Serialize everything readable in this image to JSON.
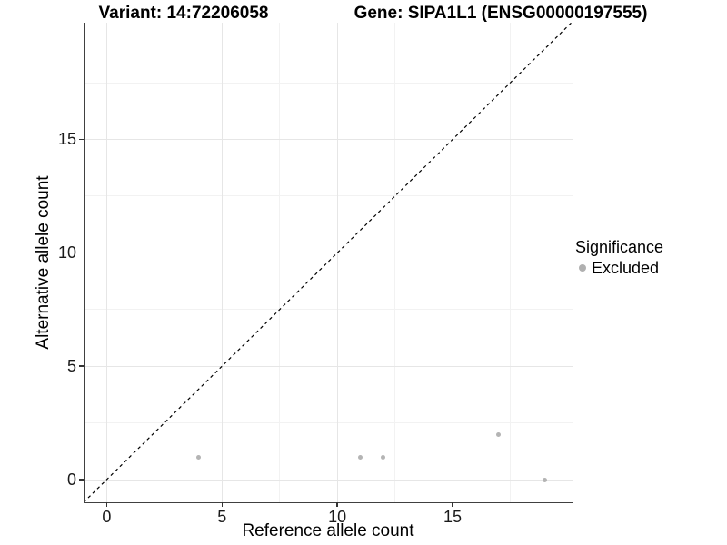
{
  "titles": {
    "variant": "Variant: 14:72206058",
    "gene": "Gene: SIPA1L1 (ENSG00000197555)"
  },
  "chart_data": {
    "type": "scatter",
    "title": "Variant: 14:72206058 | Gene: SIPA1L1 (ENSG00000197555)",
    "xlabel": "Reference allele count",
    "ylabel": "Alternative allele count",
    "xlim": [
      -1,
      20.2
    ],
    "ylim": [
      -1,
      20.15
    ],
    "x_ticks": [
      0,
      5,
      10,
      15
    ],
    "y_ticks": [
      0,
      5,
      10,
      15
    ],
    "x_minor_ticks": [
      2.5,
      7.5,
      12.5,
      17.5
    ],
    "y_minor_ticks": [
      2.5,
      7.5,
      12.5,
      17.5
    ],
    "grid": true,
    "series": [
      {
        "name": "Excluded",
        "color": "#b4b4b4",
        "points": [
          [
            4,
            1
          ],
          [
            11,
            1
          ],
          [
            12,
            1
          ],
          [
            17,
            2
          ],
          [
            19,
            0
          ]
        ]
      }
    ],
    "reference_line": {
      "type": "identity",
      "style": "dashed",
      "color": "#000000"
    },
    "legend": {
      "position": "right",
      "title": "Significance",
      "entries": [
        {
          "label": "Excluded",
          "color": "#b0b0b0"
        }
      ]
    }
  },
  "colors": {
    "point": "#b4b4b4",
    "grid_major": "#e6e6e6",
    "grid_minor": "#f2f2f2",
    "axis_line": "#404040",
    "dashed_line": "#000000"
  }
}
